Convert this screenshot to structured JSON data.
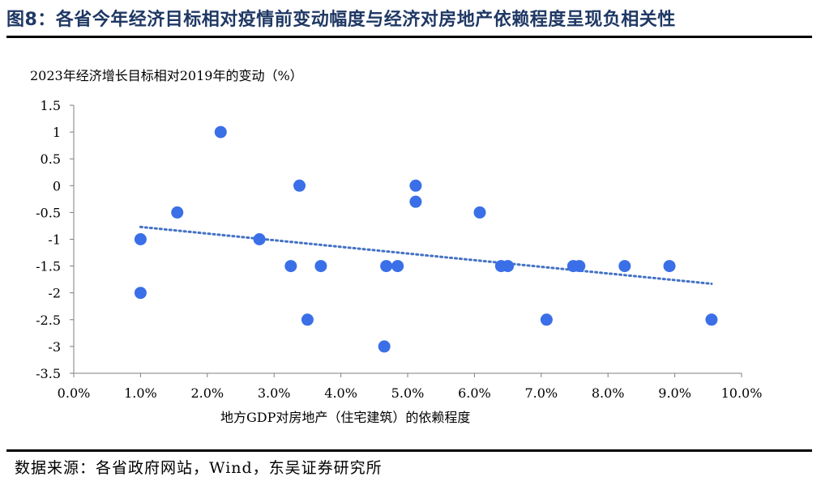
{
  "figure": {
    "title": "图8：各省今年经济目标相对疫情前变动幅度与经济对房地产依赖程度呈现负相关性",
    "source": "数据来源：各省政府网站，Wind，东吴证券研究所"
  },
  "colors": {
    "title": "#1f3864",
    "points": "#3a6fe8",
    "trendline": "#4472c4"
  },
  "chart_data": {
    "type": "scatter",
    "ylabel": "2023年经济增长目标相对2019年的变动（%）",
    "xlabel": "地方GDP对房地产（住宅建筑）的依赖程度",
    "xlim": [
      0,
      10
    ],
    "ylim": [
      -3.5,
      1.5
    ],
    "x_ticks": [
      "0.0%",
      "1.0%",
      "2.0%",
      "3.0%",
      "4.0%",
      "5.0%",
      "6.0%",
      "7.0%",
      "8.0%",
      "9.0%",
      "10.0%"
    ],
    "y_ticks": [
      "1.5",
      "1",
      "0.5",
      "0",
      "-0.5",
      "-1",
      "-1.5",
      "-2",
      "-2.5",
      "-3",
      "-3.5"
    ],
    "grid": false,
    "legend": "none",
    "points": [
      {
        "x": 1.0,
        "y": -1.0
      },
      {
        "x": 1.0,
        "y": -2.0
      },
      {
        "x": 1.55,
        "y": -0.5
      },
      {
        "x": 2.2,
        "y": 1.0
      },
      {
        "x": 2.78,
        "y": -1.0
      },
      {
        "x": 3.25,
        "y": -1.5
      },
      {
        "x": 3.38,
        "y": 0.0
      },
      {
        "x": 3.5,
        "y": -2.5
      },
      {
        "x": 3.7,
        "y": -1.5
      },
      {
        "x": 4.65,
        "y": -3.0
      },
      {
        "x": 4.68,
        "y": -1.5
      },
      {
        "x": 4.85,
        "y": -1.5
      },
      {
        "x": 5.12,
        "y": 0.0
      },
      {
        "x": 5.12,
        "y": -0.3
      },
      {
        "x": 6.08,
        "y": -0.5
      },
      {
        "x": 6.4,
        "y": -1.5
      },
      {
        "x": 6.5,
        "y": -1.5
      },
      {
        "x": 7.08,
        "y": -2.5
      },
      {
        "x": 7.48,
        "y": -1.5
      },
      {
        "x": 7.57,
        "y": -1.5
      },
      {
        "x": 8.25,
        "y": -1.5
      },
      {
        "x": 8.92,
        "y": -1.5
      },
      {
        "x": 9.55,
        "y": -2.5
      }
    ],
    "trendline": {
      "style": "dotted",
      "x": [
        1.0,
        9.55
      ],
      "y": [
        -0.77,
        -1.83
      ]
    }
  }
}
